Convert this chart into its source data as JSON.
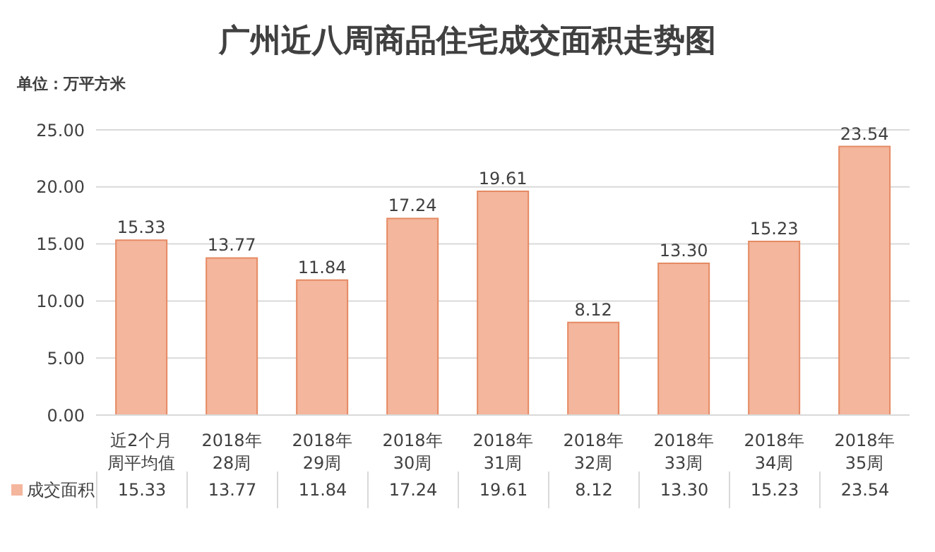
{
  "chart_data": {
    "type": "bar",
    "title": "广州近八周商品住宅成交面积走势图",
    "ylabel": "单位：万平方米",
    "categories": [
      "近2个月周平均值",
      "2018年28周",
      "2018年29周",
      "2018年30周",
      "2018年31周",
      "2018年32周",
      "2018年33周",
      "2018年34周",
      "2018年35周"
    ],
    "series": [
      {
        "name": "成交面积",
        "color": "#f4b69c",
        "values": [
          15.33,
          13.77,
          11.84,
          17.24,
          19.61,
          8.12,
          13.3,
          15.23,
          23.54
        ],
        "value_labels": [
          "15.33",
          "13.77",
          "11.84",
          "17.24",
          "19.61",
          "8.12",
          "13.30",
          "15.23",
          "23.54"
        ]
      }
    ],
    "ylim": [
      0,
      25
    ],
    "yticks": [
      {
        "value": 0,
        "label": "0.00"
      },
      {
        "value": 5,
        "label": "5.00"
      },
      {
        "value": 10,
        "label": "10.00"
      },
      {
        "value": 15,
        "label": "15.00"
      },
      {
        "value": 20,
        "label": "20.00"
      },
      {
        "value": 25,
        "label": "25.00"
      }
    ],
    "grid": "y",
    "legend": "bottom"
  }
}
